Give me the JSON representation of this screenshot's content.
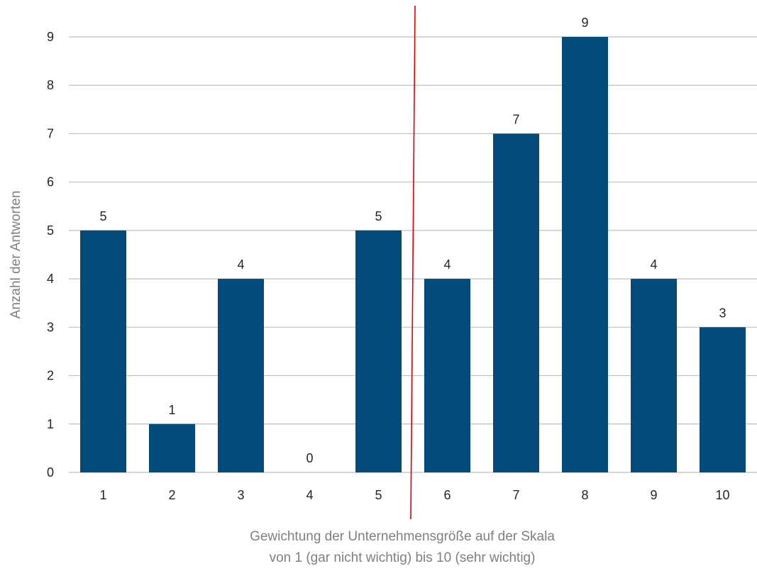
{
  "chart_data": {
    "type": "bar",
    "categories": [
      "1",
      "2",
      "3",
      "4",
      "5",
      "6",
      "7",
      "8",
      "9",
      "10"
    ],
    "values": [
      5,
      1,
      4,
      0,
      5,
      4,
      7,
      9,
      4,
      3
    ],
    "title": "",
    "xlabel_lines": [
      "Gewichtung der Unternehmensgröße auf der Skala",
      "von 1 (gar nicht wichtig) bis 10 (sehr wichtig)"
    ],
    "ylabel": "Anzahl der Antworten",
    "ylim": [
      0,
      9
    ],
    "yticks": [
      "0",
      "1",
      "2",
      "3",
      "4",
      "5",
      "6",
      "7",
      "8",
      "9"
    ],
    "grid": true,
    "legend": "none",
    "bar_color": "#034b7b",
    "grid_color": "#bfbfbf",
    "divider_color": "#e00000",
    "divider_between": [
      "5",
      "6"
    ]
  }
}
